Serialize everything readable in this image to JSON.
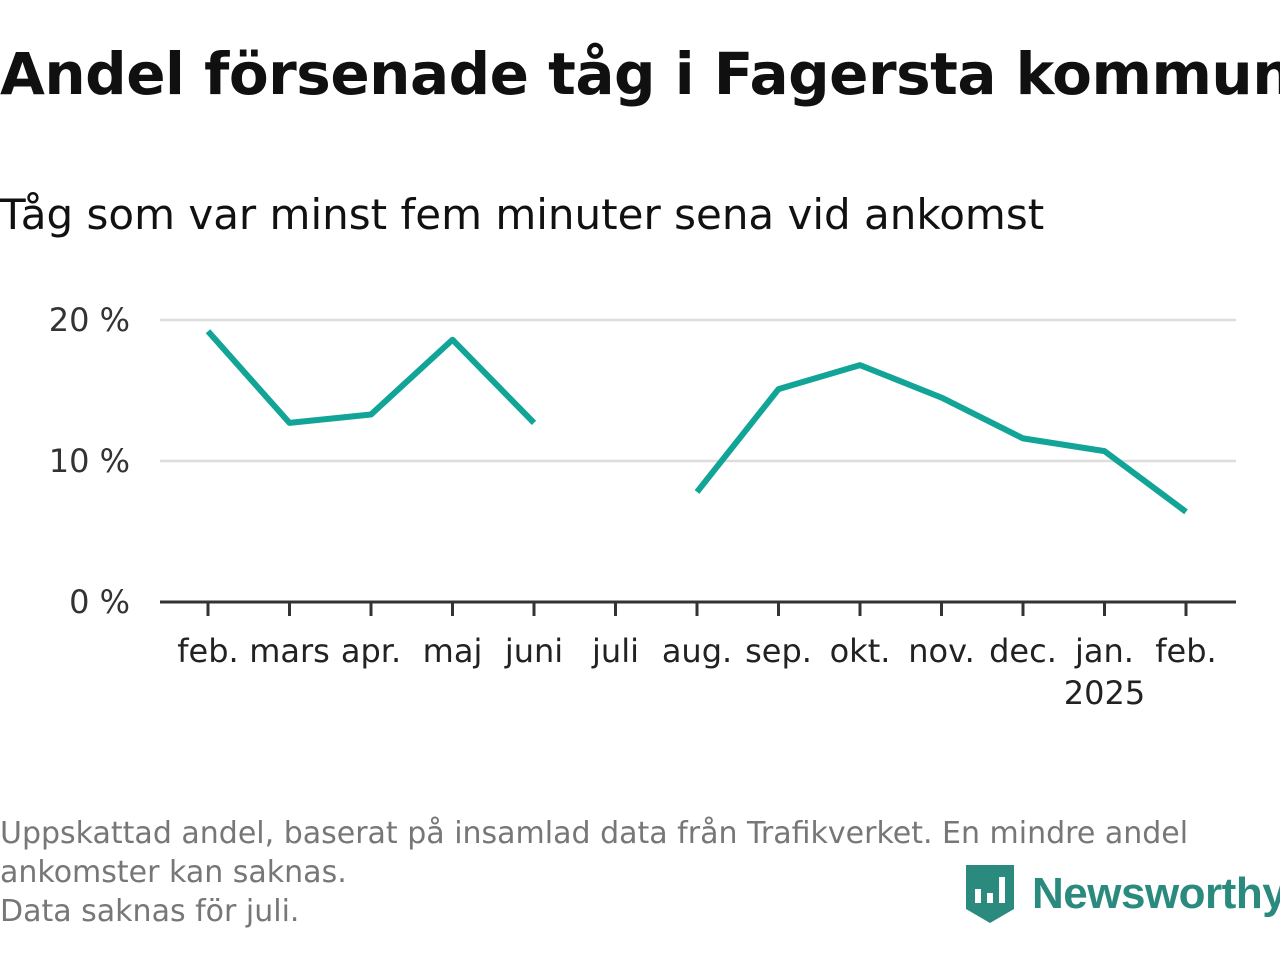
{
  "header": {
    "title": "Andel försenade tåg i Fagersta kommun",
    "subtitle": "Tåg som var minst fem minuter sena vid ankomst"
  },
  "chart_data": {
    "type": "line",
    "title": "Andel försenade tåg i Fagersta kommun",
    "subtitle": "Tåg som var minst fem minuter sena vid ankomst",
    "categories": [
      "feb.",
      "mars",
      "apr.",
      "maj",
      "juni",
      "juli",
      "aug.",
      "sep.",
      "okt.",
      "nov.",
      "dec.",
      "jan.",
      "feb."
    ],
    "year_label": {
      "category_index": 11,
      "text": "2025"
    },
    "series": [
      {
        "color": "#12a597",
        "values": [
          19.2,
          12.7,
          13.3,
          18.6,
          12.7,
          null,
          7.8,
          15.1,
          16.8,
          14.5,
          11.6,
          10.7,
          6.4
        ]
      }
    ],
    "y_ticks": [
      {
        "value": 0,
        "label": "0 %"
      },
      {
        "value": 10,
        "label": "10 %"
      },
      {
        "value": 20,
        "label": "20 %"
      }
    ],
    "ylim": [
      0,
      20
    ],
    "xlabel": "",
    "ylabel": "",
    "grid": true,
    "legend": "none"
  },
  "footnote": {
    "line1": "Uppskattad andel, baserat på insamlad data från Trafikverket. En mindre andel",
    "line2": "ankomster kan saknas.",
    "line3": "Data saknas för juli."
  },
  "brand": {
    "name": "Newsworthy",
    "icon": "newsworthy-logo-icon",
    "color": "#2b8a7e"
  },
  "colors": {
    "line": "#12a597",
    "grid": "#dddddd",
    "axis": "#333333",
    "footnote": "#777777"
  }
}
